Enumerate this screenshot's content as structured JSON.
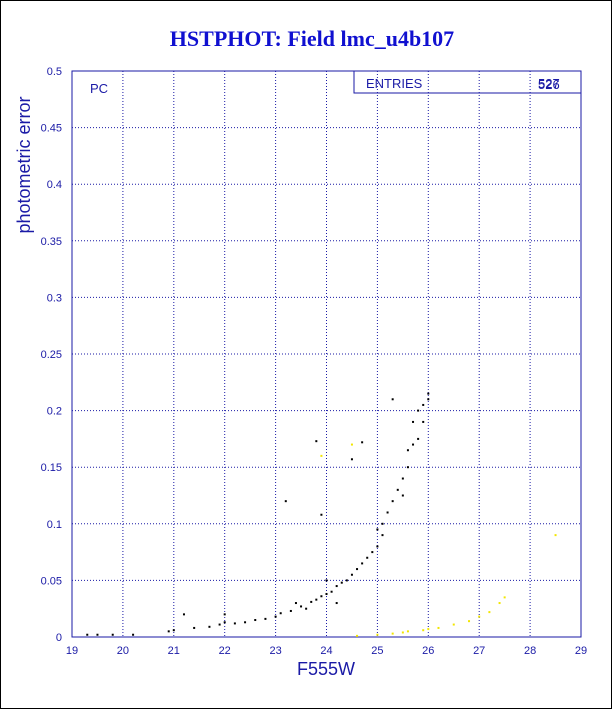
{
  "chart_data": {
    "type": "scatter",
    "title": "HSTPHOT: Field lmc_u4b107",
    "xlabel": "F555W",
    "ylabel": "photometric error",
    "annotation": "PC",
    "stats": {
      "label": "ENTRIES",
      "values": [
        527,
        526
      ]
    },
    "xlim": [
      19,
      29
    ],
    "xticks": [
      19,
      20,
      21,
      22,
      23,
      24,
      25,
      26,
      27,
      28,
      29
    ],
    "ylim": [
      0,
      0.5
    ],
    "yticks": [
      0,
      0.05,
      0.1,
      0.15,
      0.2,
      0.25,
      0.3,
      0.35,
      0.4,
      0.45,
      0.5
    ],
    "grid": true,
    "series": [
      {
        "color": "#000000",
        "x": [
          19.3,
          19.5,
          19.8,
          20.2,
          20.9,
          21.0,
          21.2,
          21.4,
          21.7,
          21.9,
          22.0,
          22.0,
          22.2,
          22.4,
          22.6,
          22.8,
          23.0,
          23.1,
          23.2,
          23.3,
          23.5,
          23.6,
          23.7,
          23.8,
          23.8,
          23.9,
          23.9,
          24.0,
          24.1,
          24.2,
          24.3,
          24.4,
          24.5,
          24.5,
          24.6,
          24.7,
          24.7,
          24.8,
          24.9,
          25.0,
          25.0,
          25.1,
          25.2,
          25.3,
          25.3,
          25.4,
          25.5,
          25.5,
          25.6,
          25.6,
          25.7,
          25.7,
          25.8,
          25.8,
          25.9,
          25.9,
          26.0,
          26.0,
          24.2,
          23.4,
          25.1,
          24.0
        ],
        "values": [
          0.002,
          0.002,
          0.002,
          0.002,
          0.005,
          0.006,
          0.02,
          0.008,
          0.009,
          0.011,
          0.013,
          0.02,
          0.012,
          0.013,
          0.015,
          0.016,
          0.018,
          0.021,
          0.12,
          0.023,
          0.027,
          0.025,
          0.031,
          0.033,
          0.173,
          0.036,
          0.108,
          0.038,
          0.04,
          0.045,
          0.048,
          0.05,
          0.055,
          0.157,
          0.06,
          0.065,
          0.172,
          0.07,
          0.075,
          0.08,
          0.095,
          0.1,
          0.11,
          0.21,
          0.12,
          0.13,
          0.14,
          0.125,
          0.15,
          0.165,
          0.17,
          0.19,
          0.175,
          0.2,
          0.205,
          0.19,
          0.21,
          0.215,
          0.03,
          0.03,
          0.09,
          0.05
        ]
      },
      {
        "color": "#f2e600",
        "x": [
          23.9,
          24.5,
          24.6,
          25.0,
          25.3,
          25.6,
          25.9,
          26.2,
          26.5,
          26.8,
          27.0,
          27.2,
          27.4,
          27.5,
          28.5,
          26.0,
          25.5
        ],
        "values": [
          0.16,
          0.17,
          0.001,
          0.002,
          0.003,
          0.005,
          0.006,
          0.008,
          0.011,
          0.014,
          0.018,
          0.022,
          0.03,
          0.035,
          0.09,
          0.007,
          0.004
        ]
      }
    ]
  }
}
